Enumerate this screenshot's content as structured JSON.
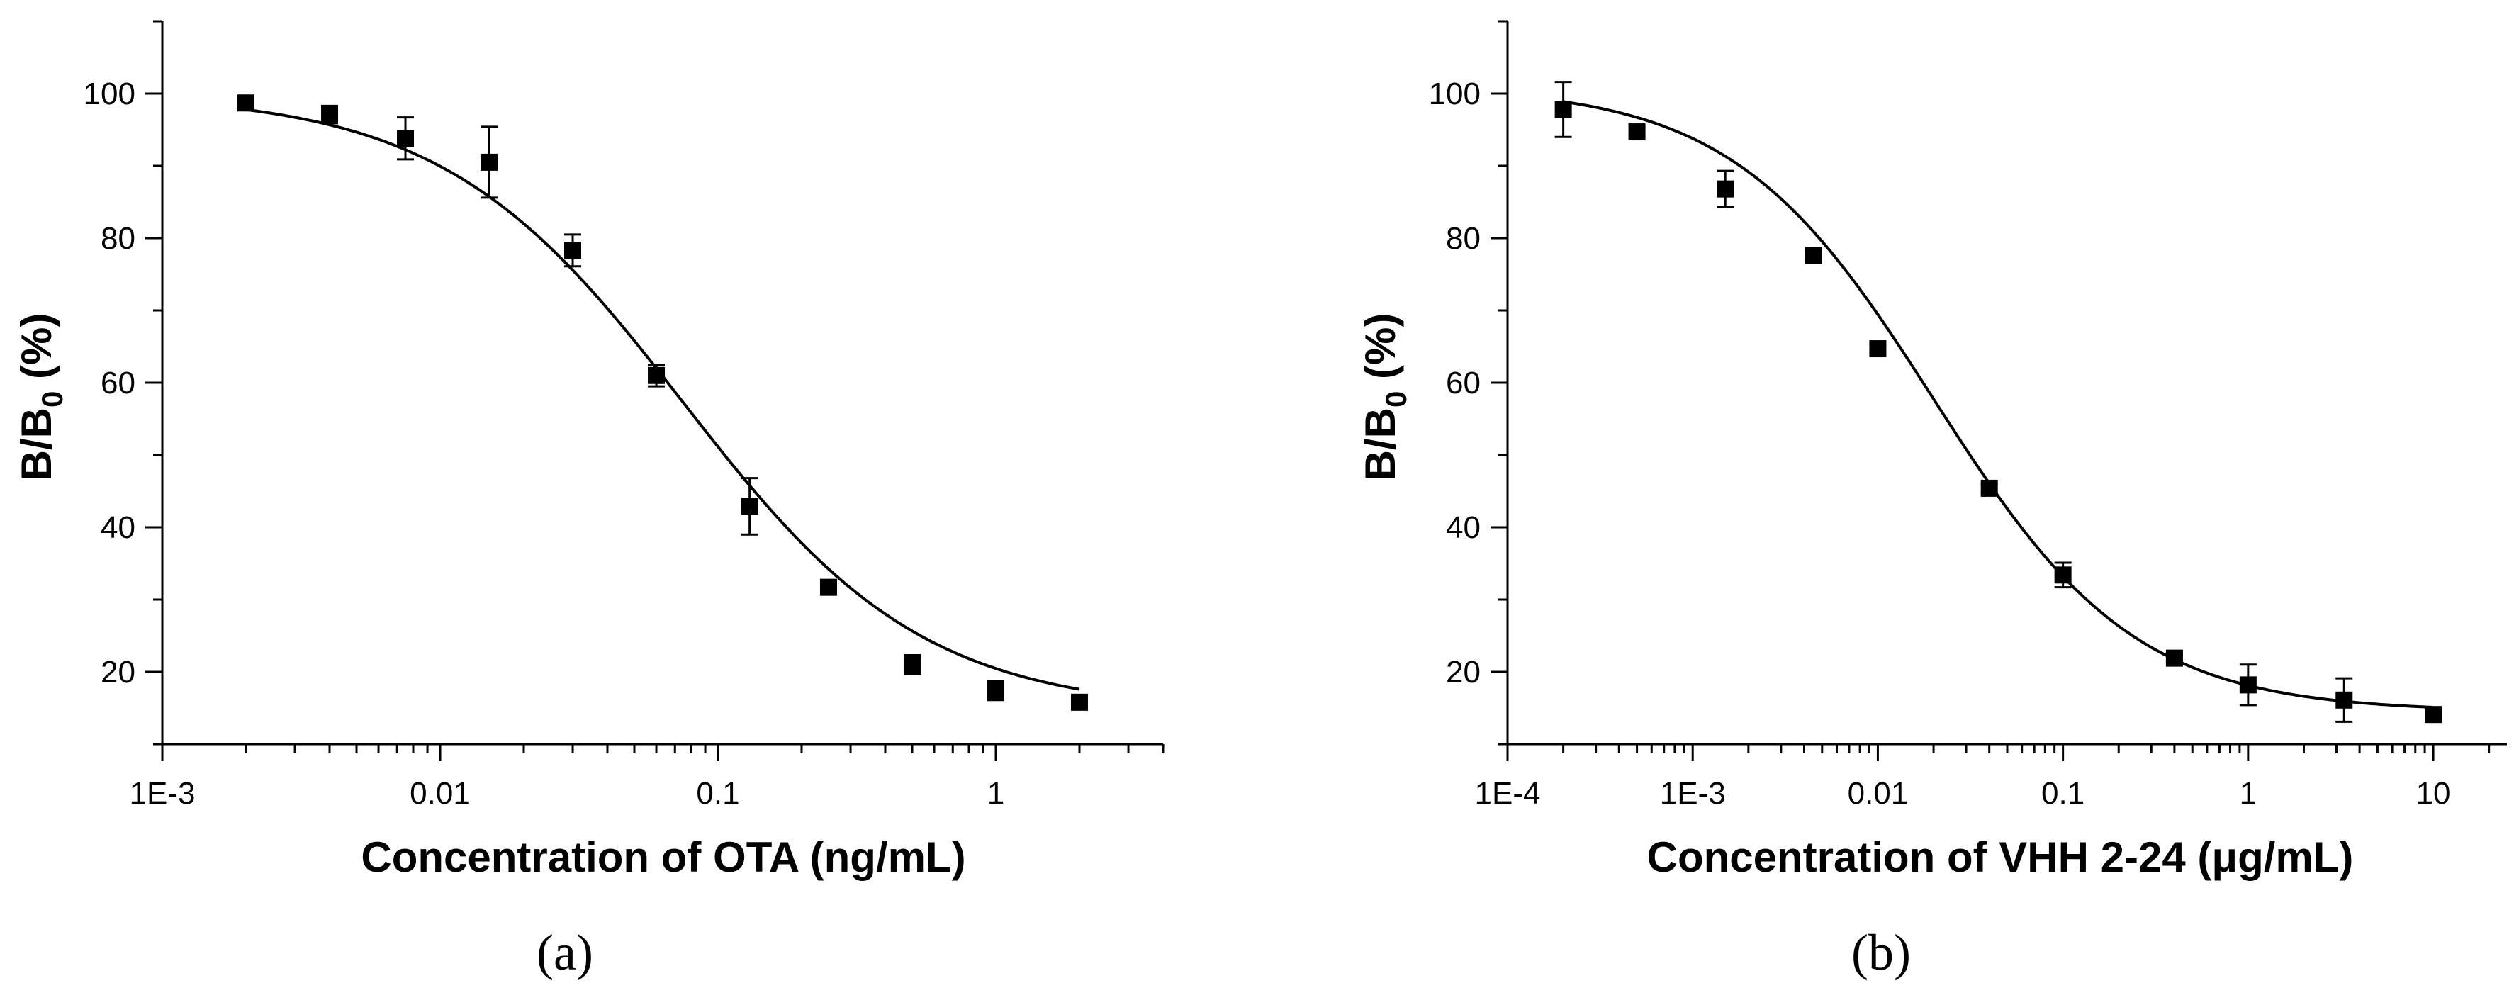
{
  "chart_data": [
    {
      "type": "scatter",
      "panel_label": "(a)",
      "xlabel": "Concentration of OTA (ng/mL)",
      "ylabel": {
        "main": "B/B",
        "sub": "0",
        "suffix": " (%)"
      },
      "xscale": "log",
      "xlim": [
        0.001,
        4
      ],
      "ylim": [
        10,
        110
      ],
      "xticks": [
        {
          "value": 0.001,
          "label": "1E-3"
        },
        {
          "value": 0.01,
          "label": "0.01"
        },
        {
          "value": 0.1,
          "label": "0.1"
        },
        {
          "value": 1,
          "label": "1"
        }
      ],
      "yticks": [
        20,
        40,
        60,
        80,
        100
      ],
      "yminor_step": 10,
      "grid": false,
      "legend": false,
      "series": [
        {
          "marker": "filled-square",
          "x": [
            0.002,
            0.004,
            0.0075,
            0.015,
            0.03,
            0.06,
            0.13,
            0.25,
            0.5,
            1,
            2
          ],
          "y": [
            98.7,
            97.1,
            93.8,
            90.5,
            78.3,
            61.0,
            42.9,
            31.7,
            21.0,
            17.4,
            15.8
          ],
          "error": [
            0.6,
            1.2,
            2.9,
            4.9,
            2.2,
            1.5,
            3.9,
            0.5,
            1.3,
            1.3,
            0.5
          ]
        }
      ],
      "fit": {
        "type": "four-parameter-logistic",
        "top": 100,
        "bottom": 14.5,
        "ic50": 0.075,
        "hill": 1.0
      }
    },
    {
      "type": "scatter",
      "panel_label": "(b)",
      "xlabel": "Concentration of VHH 2-24 (μg/mL)",
      "ylabel": {
        "main": "B/B",
        "sub": "0",
        "suffix": " (%)"
      },
      "xscale": "log",
      "xlim": [
        0.0001,
        25
      ],
      "ylim": [
        10,
        110
      ],
      "xticks": [
        {
          "value": 0.0001,
          "label": "1E-4"
        },
        {
          "value": 0.001,
          "label": "1E-3"
        },
        {
          "value": 0.01,
          "label": "0.01"
        },
        {
          "value": 0.1,
          "label": "0.1"
        },
        {
          "value": 1,
          "label": "1"
        },
        {
          "value": 10,
          "label": "10"
        }
      ],
      "yticks": [
        20,
        40,
        60,
        80,
        100
      ],
      "yminor_step": 10,
      "grid": false,
      "legend": false,
      "series": [
        {
          "marker": "filled-square",
          "x": [
            0.0002,
            0.0005,
            0.0015,
            0.0045,
            0.01,
            0.04,
            0.1,
            0.4,
            1,
            3.3,
            10
          ],
          "y": [
            97.8,
            94.7,
            86.8,
            77.6,
            64.7,
            45.4,
            33.4,
            21.9,
            18.2,
            16.1,
            14.1
          ],
          "error": [
            3.8,
            0.5,
            2.5,
            0.6,
            0.6,
            0.6,
            1.7,
            0.5,
            2.8,
            3.0,
            0.5
          ]
        }
      ],
      "fit": {
        "type": "four-parameter-logistic",
        "top": 101,
        "bottom": 14.5,
        "ic50": 0.02,
        "hill": 0.8
      }
    }
  ]
}
